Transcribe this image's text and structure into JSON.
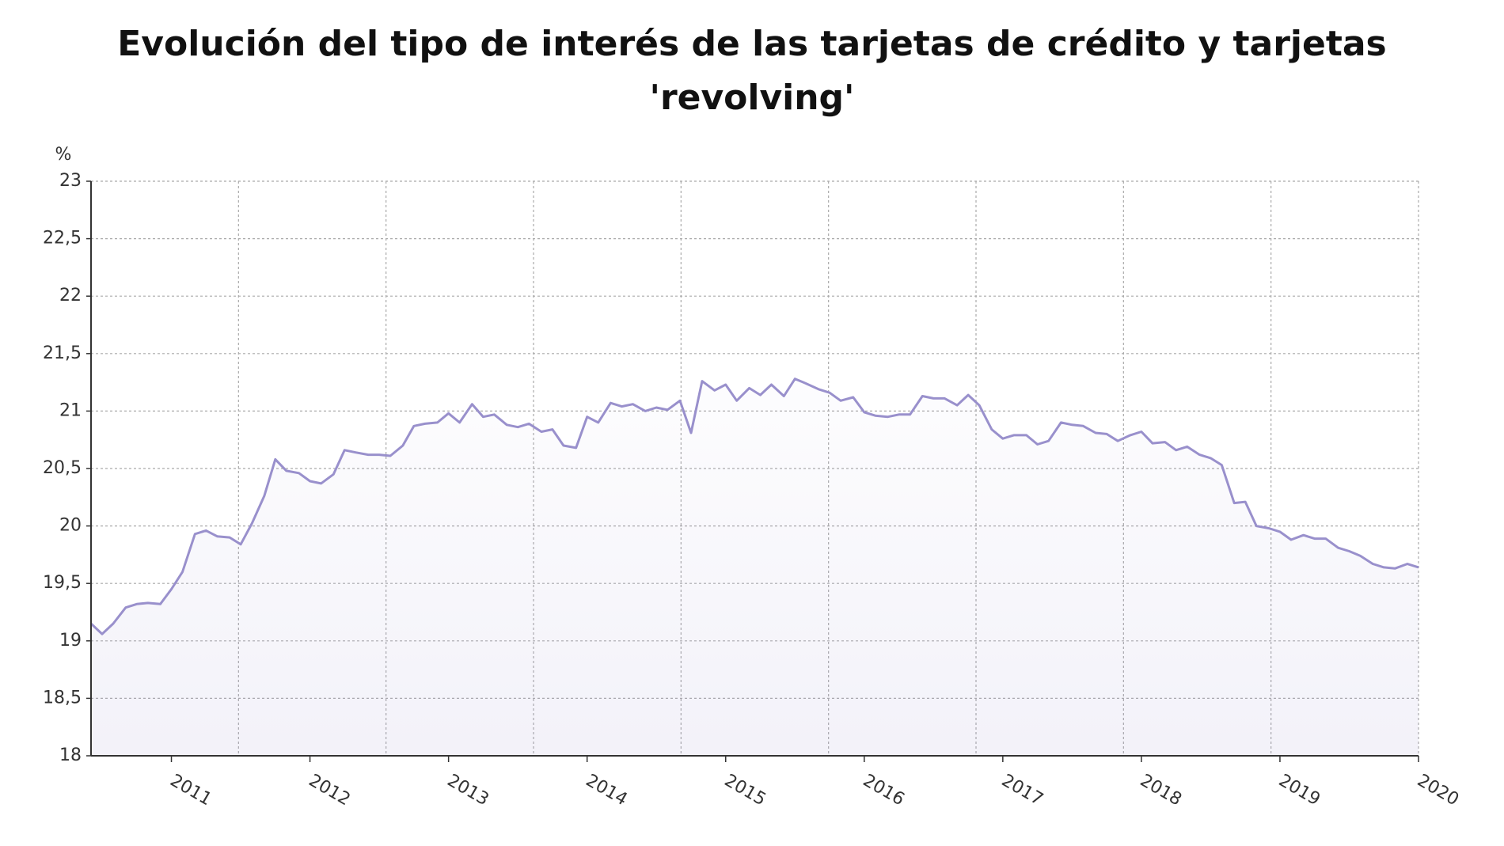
{
  "chart_data": {
    "type": "line",
    "title": "Evolución del tipo de interés de las tarjetas de crédito y tarjetas 'revolving'",
    "y_axis_label": "%",
    "color": "#9990cc",
    "x": [
      2010.42,
      2010.5,
      2010.58,
      2010.67,
      2010.75,
      2010.83,
      2010.92,
      2011,
      2011.08,
      2011.17,
      2011.25,
      2011.33,
      2011.42,
      2011.5,
      2011.58,
      2011.67,
      2011.75,
      2011.83,
      2011.92,
      2012,
      2012.08,
      2012.17,
      2012.25,
      2012.33,
      2012.42,
      2012.5,
      2012.58,
      2012.67,
      2012.75,
      2012.83,
      2012.92,
      2013,
      2013.08,
      2013.17,
      2013.25,
      2013.33,
      2013.42,
      2013.5,
      2013.58,
      2013.67,
      2013.75,
      2013.83,
      2013.92,
      2014,
      2014.08,
      2014.17,
      2014.25,
      2014.33,
      2014.42,
      2014.5,
      2014.58,
      2014.67,
      2014.75,
      2014.83,
      2014.92,
      2015,
      2015.08,
      2015.17,
      2015.25,
      2015.33,
      2015.42,
      2015.5,
      2015.58,
      2015.67,
      2015.75,
      2015.83,
      2015.92,
      2016,
      2016.08,
      2016.17,
      2016.25,
      2016.33,
      2016.42,
      2016.5,
      2016.58,
      2016.67,
      2016.75,
      2016.83,
      2016.92,
      2017,
      2017.08,
      2017.17,
      2017.25,
      2017.33,
      2017.42,
      2017.5,
      2017.58,
      2017.67,
      2017.75,
      2017.83,
      2017.92,
      2018,
      2018.08,
      2018.17,
      2018.25,
      2018.33,
      2018.42,
      2018.5,
      2018.58,
      2018.67,
      2018.75,
      2018.83,
      2018.92,
      2019,
      2019.08,
      2019.17,
      2019.25,
      2019.33,
      2019.42,
      2019.5,
      2019.58,
      2019.67,
      2019.75,
      2019.83,
      2019.92,
      2020
    ],
    "values": [
      19.15,
      19.06,
      19.15,
      19.29,
      19.32,
      19.33,
      19.32,
      19.45,
      19.6,
      19.93,
      19.96,
      19.91,
      19.9,
      19.84,
      20.02,
      20.26,
      20.58,
      20.48,
      20.46,
      20.39,
      20.37,
      20.45,
      20.66,
      20.64,
      20.62,
      20.62,
      20.61,
      20.7,
      20.87,
      20.89,
      20.9,
      20.98,
      20.9,
      21.06,
      20.95,
      20.97,
      20.88,
      20.86,
      20.89,
      20.82,
      20.84,
      20.7,
      20.68,
      20.95,
      20.9,
      21.07,
      21.04,
      21.06,
      21.0,
      21.03,
      21.01,
      21.09,
      20.81,
      21.26,
      21.18,
      21.23,
      21.09,
      21.2,
      21.14,
      21.23,
      21.13,
      21.28,
      21.24,
      21.19,
      21.16,
      21.09,
      21.12,
      20.99,
      20.96,
      20.95,
      20.97,
      20.97,
      21.13,
      21.11,
      21.11,
      21.05,
      21.14,
      21.05,
      20.84,
      20.76,
      20.79,
      20.79,
      20.71,
      20.74,
      20.9,
      20.88,
      20.87,
      20.81,
      20.8,
      20.74,
      20.79,
      20.82,
      20.72,
      20.73,
      20.66,
      20.69,
      20.62,
      20.59,
      20.53,
      20.2,
      20.21,
      20.0,
      19.98,
      19.95,
      19.88,
      19.92,
      19.89,
      19.89,
      19.81,
      19.78,
      19.74,
      19.67,
      19.64,
      19.63,
      19.67,
      19.64
    ],
    "xlim": [
      2010.42,
      2020
    ],
    "xticks": [
      2011,
      2012,
      2013,
      2014,
      2015,
      2016,
      2017,
      2018,
      2019,
      2020
    ],
    "ylim": [
      18,
      23
    ],
    "yticks": [
      18,
      {
        "value": 18.5,
        "label": "18,5"
      },
      19,
      {
        "value": 19.5,
        "label": "19,5"
      },
      20,
      {
        "value": 20.5,
        "label": "20,5"
      },
      21,
      {
        "value": 21.5,
        "label": "21,5"
      },
      22,
      {
        "value": 22.5,
        "label": "22,5"
      },
      23
    ],
    "grid": true
  }
}
